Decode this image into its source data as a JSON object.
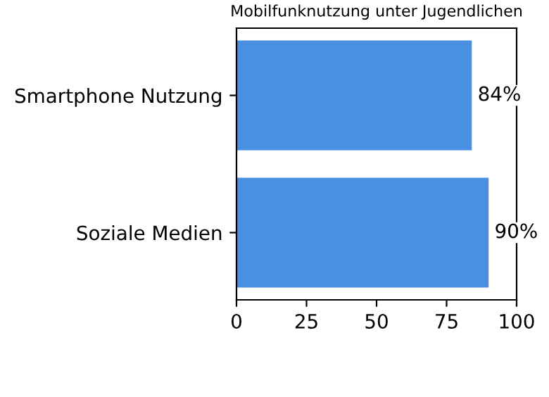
{
  "chart_data": {
    "type": "bar",
    "orientation": "horizontal",
    "title": "Mobilfunknutzung unter Jugendlichen",
    "categories": [
      "Smartphone Nutzung",
      "Soziale Medien"
    ],
    "values": [
      84,
      90
    ],
    "value_labels": [
      "84%",
      "90%"
    ],
    "color": "#4a90e2",
    "xlim": [
      0,
      100
    ],
    "xticks": [
      0,
      25,
      50,
      75,
      100
    ],
    "grid": false
  }
}
